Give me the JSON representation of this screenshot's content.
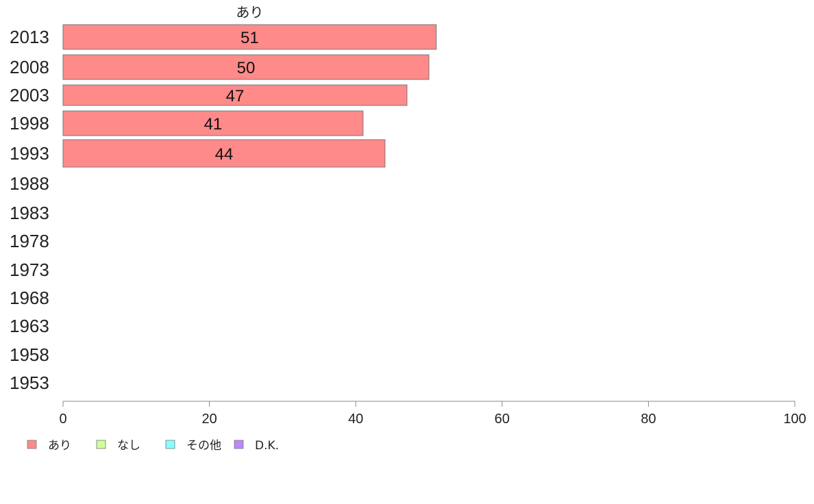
{
  "chart_data": {
    "type": "bar",
    "orientation": "horizontal",
    "categories": [
      "2013",
      "2008",
      "2003",
      "1998",
      "1993",
      "1988",
      "1983",
      "1978",
      "1973",
      "1968",
      "1963",
      "1958",
      "1953"
    ],
    "series": [
      {
        "name": "あり",
        "color": "#ff8a8a",
        "values": [
          51,
          50,
          47,
          41,
          44,
          null,
          null,
          null,
          null,
          null,
          null,
          null,
          null
        ]
      },
      {
        "name": "なし",
        "color": "#ccff99",
        "values": [
          null,
          null,
          null,
          null,
          null,
          null,
          null,
          null,
          null,
          null,
          null,
          null,
          null
        ]
      },
      {
        "name": "その他",
        "color": "#88ffff",
        "values": [
          null,
          null,
          null,
          null,
          null,
          null,
          null,
          null,
          null,
          null,
          null,
          null,
          null
        ]
      },
      {
        "name": "D.K.",
        "color": "#bb88ff",
        "values": [
          null,
          null,
          null,
          null,
          null,
          null,
          null,
          null,
          null,
          null,
          null,
          null,
          null
        ]
      }
    ],
    "series_header": "あり",
    "xlim": [
      0,
      100
    ],
    "xticks": [
      0,
      20,
      40,
      60,
      80,
      100
    ],
    "grid": false,
    "legend_position": "bottom-left",
    "axis_color": "#888888",
    "bar_border_color": "#777777"
  }
}
